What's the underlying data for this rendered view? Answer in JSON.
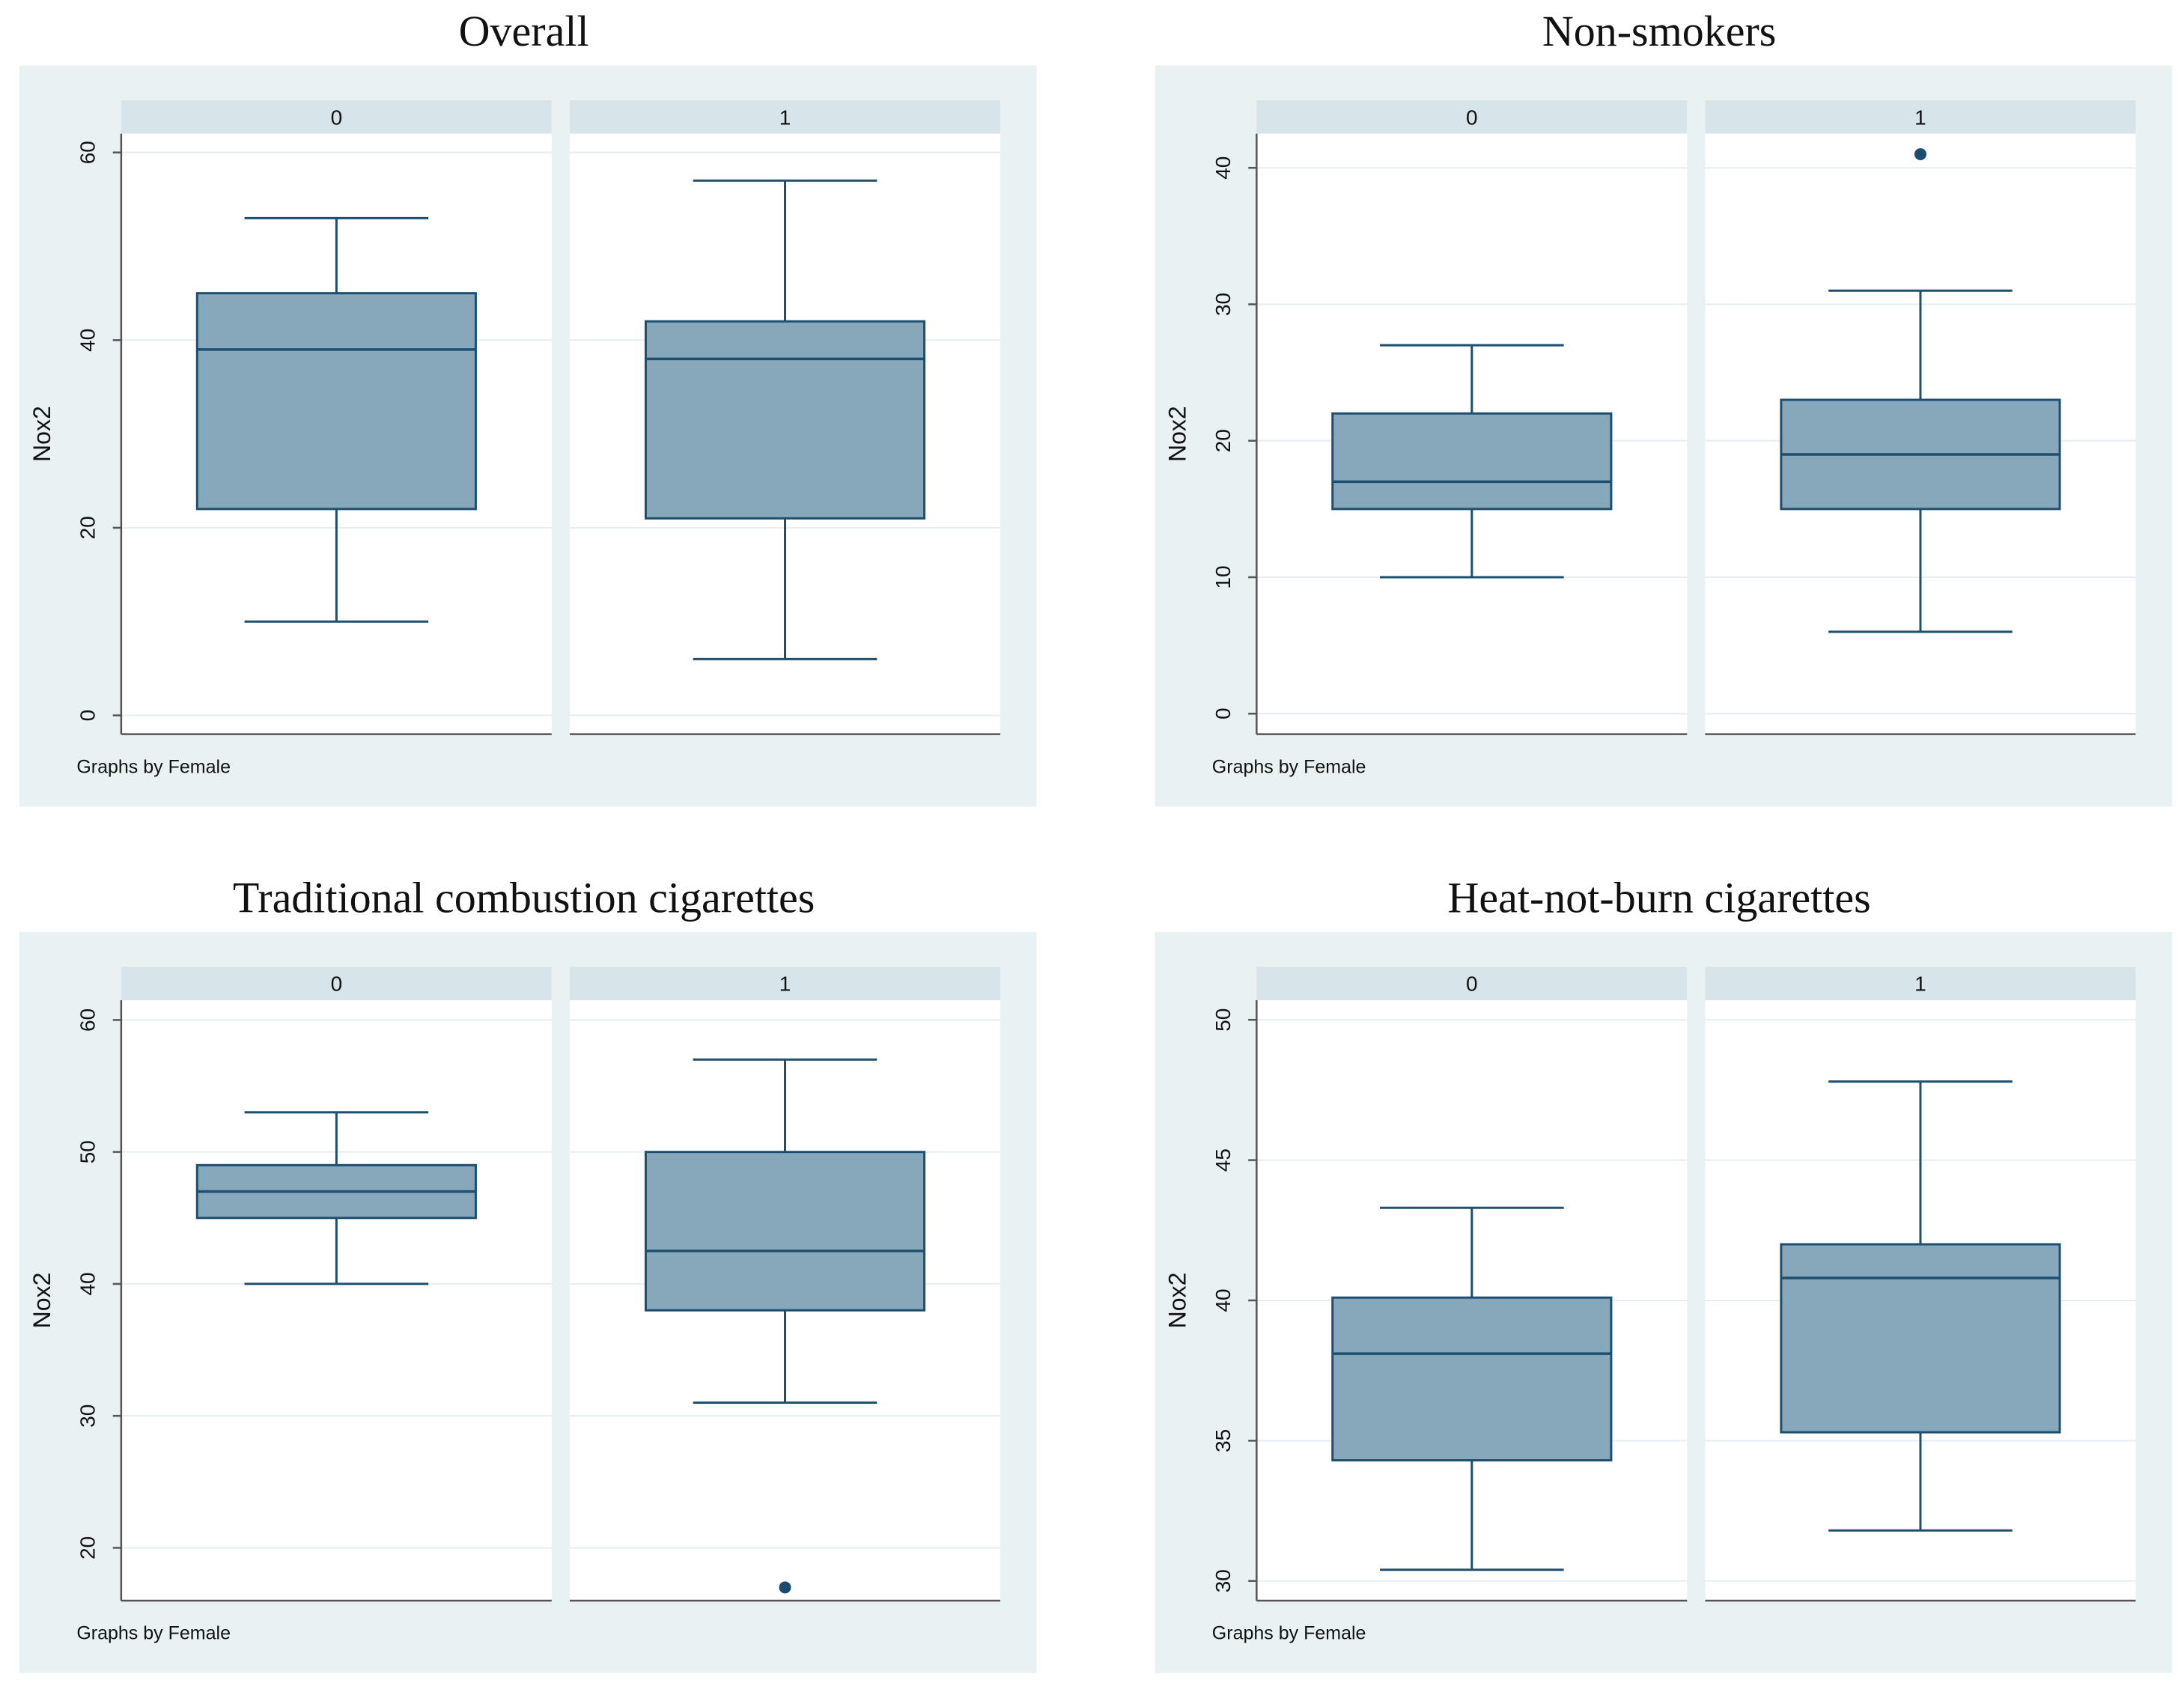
{
  "colors": {
    "outer_background": "#e9f1f3",
    "plot_background": "#ffffff",
    "strip_background": "#d7e5ea",
    "box_fill": "#87a7bb",
    "box_stroke": "#1e4f6e",
    "grid": "#e7edf0",
    "axis": "#555555",
    "outlier": "#1a4d70"
  },
  "chart_data": [
    {
      "type": "box",
      "title": "Overall",
      "ylabel": "Nox2",
      "note": "Graphs by Female",
      "ylim": [
        -2,
        62
      ],
      "yticks": [
        0,
        20,
        40,
        60
      ],
      "panels": [
        {
          "label": "0",
          "whisker_low": 10,
          "q1": 22,
          "median": 39,
          "q3": 45,
          "whisker_high": 53,
          "outliers": []
        },
        {
          "label": "1",
          "whisker_low": 6,
          "q1": 21,
          "median": 38,
          "q3": 42,
          "whisker_high": 57,
          "outliers": []
        }
      ]
    },
    {
      "type": "box",
      "title": "Non-smokers",
      "ylabel": "Nox2",
      "note": "Graphs by Female",
      "ylim": [
        -1.5,
        42.5
      ],
      "yticks": [
        0,
        10,
        20,
        30,
        40
      ],
      "panels": [
        {
          "label": "0",
          "whisker_low": 10,
          "q1": 15,
          "median": 17,
          "q3": 22,
          "whisker_high": 27,
          "outliers": []
        },
        {
          "label": "1",
          "whisker_low": 6,
          "q1": 15,
          "median": 19,
          "q3": 23,
          "whisker_high": 31,
          "outliers": [
            41
          ]
        }
      ]
    },
    {
      "type": "box",
      "title": "Traditional combustion cigarettes",
      "ylabel": "Nox2",
      "note": "Graphs by Female",
      "ylim": [
        16,
        61.5
      ],
      "yticks": [
        20,
        30,
        40,
        50,
        60
      ],
      "panels": [
        {
          "label": "0",
          "whisker_low": 40,
          "q1": 45,
          "median": 47,
          "q3": 49,
          "whisker_high": 53,
          "outliers": []
        },
        {
          "label": "1",
          "whisker_low": 31,
          "q1": 38,
          "median": 42.5,
          "q3": 50,
          "whisker_high": 57,
          "outliers": [
            17
          ]
        }
      ]
    },
    {
      "type": "box",
      "title": "Heat-not-burn cigarettes",
      "ylabel": "Nox2",
      "note": "Graphs by Female",
      "ylim": [
        29.3,
        50.7
      ],
      "yticks": [
        30,
        35,
        40,
        45,
        50
      ],
      "panels": [
        {
          "label": "0",
          "whisker_low": 30.4,
          "q1": 34.3,
          "median": 38.1,
          "q3": 40.1,
          "whisker_high": 43.3,
          "outliers": []
        },
        {
          "label": "1",
          "whisker_low": 31.8,
          "q1": 35.3,
          "median": 40.8,
          "q3": 42,
          "whisker_high": 47.8,
          "outliers": []
        }
      ]
    }
  ]
}
